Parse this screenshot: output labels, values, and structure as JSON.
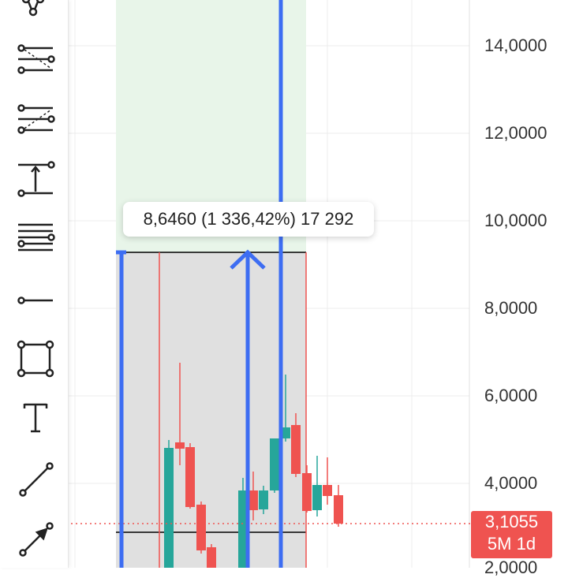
{
  "price_axis": {
    "labels": [
      "14,0000",
      "12,0000",
      "10,0000",
      "8,0000",
      "6,0000",
      "4,0000",
      "2,0000"
    ]
  },
  "measure_tooltip": {
    "text": "8,6460 (1 336,42%) 17 292"
  },
  "current_price": {
    "value": "3,1055",
    "interval": "5M 1d"
  },
  "toolbar": {
    "tools": [
      "fib-channel-icon",
      "pitchfork-icon",
      "pitchfan-icon",
      "price-range-icon",
      "parallel-channel-icon",
      "horizontal-ray-icon",
      "rectangle-icon",
      "text-icon",
      "trend-line-icon",
      "arrow-line-icon"
    ]
  },
  "colors": {
    "up": "#26a69a",
    "down": "#ef5350",
    "measure_line": "#3d6df2",
    "profit_zone": "#e8f5e9",
    "loss_zone": "#e0e0e0"
  }
}
